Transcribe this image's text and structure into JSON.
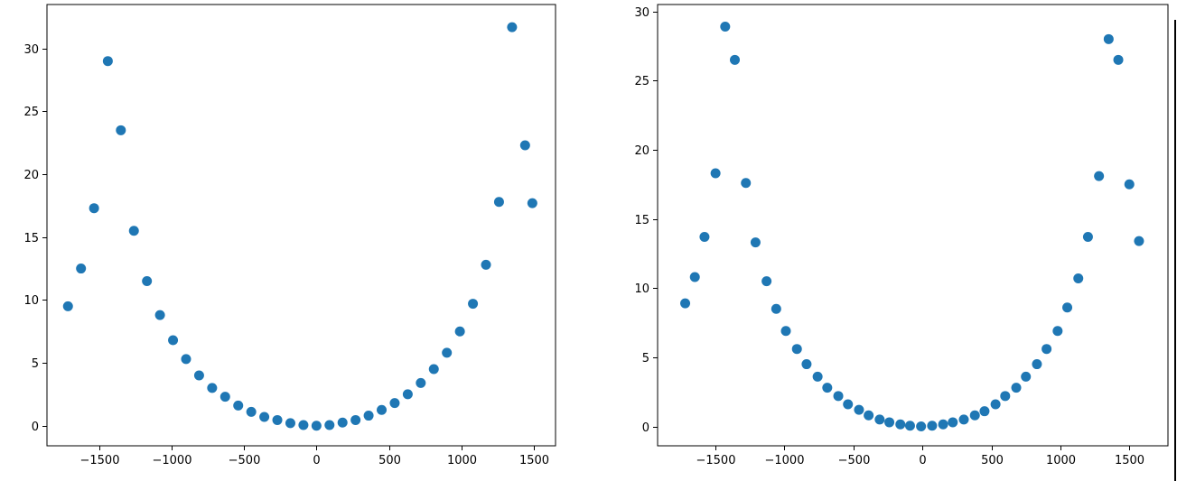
{
  "chart_data": [
    {
      "type": "scatter",
      "title": "",
      "xlabel": "",
      "ylabel": "",
      "xlim": [
        -1860,
        1650
      ],
      "ylim": [
        -1.6,
        33.5
      ],
      "xticks": [
        -1500,
        -1000,
        -500,
        0,
        500,
        1000,
        1500
      ],
      "yticks": [
        0,
        5,
        10,
        15,
        20,
        25,
        30
      ],
      "grid": false,
      "marker_color": "#1f77b4",
      "series": [
        {
          "x": [
            -1715,
            -1625,
            -1535,
            -1440,
            -1350,
            -1260,
            -1170,
            -1080,
            -990,
            -900,
            -810,
            -720,
            -630,
            -540,
            -450,
            -360,
            -270,
            -180,
            -90,
            0,
            90,
            180,
            270,
            360,
            450,
            540,
            630,
            720,
            810,
            900,
            990,
            1080,
            1170,
            1260,
            1350,
            1440,
            1490
          ],
          "y": [
            9.5,
            12.5,
            17.3,
            29.0,
            23.5,
            15.5,
            11.5,
            8.8,
            6.8,
            5.3,
            4.0,
            3.0,
            2.3,
            1.6,
            1.1,
            0.7,
            0.45,
            0.2,
            0.05,
            0.0,
            0.05,
            0.25,
            0.45,
            0.8,
            1.25,
            1.8,
            2.5,
            3.4,
            4.5,
            5.8,
            7.5,
            9.7,
            12.8,
            17.8,
            31.7,
            22.3,
            17.7
          ]
        }
      ]
    },
    {
      "type": "scatter",
      "title": "",
      "xlabel": "",
      "ylabel": "",
      "xlim": [
        -1920,
        1780
      ],
      "ylim": [
        -1.4,
        30.5
      ],
      "xticks": [
        -1500,
        -1000,
        -500,
        0,
        500,
        1000,
        1500
      ],
      "yticks": [
        0,
        5,
        10,
        15,
        20,
        25,
        30
      ],
      "grid": false,
      "marker_color": "#1f77b4",
      "series": [
        {
          "x": [
            -1720,
            -1650,
            -1580,
            -1500,
            -1430,
            -1360,
            -1280,
            -1210,
            -1130,
            -1060,
            -990,
            -910,
            -840,
            -760,
            -690,
            -610,
            -540,
            -460,
            -390,
            -310,
            -240,
            -160,
            -90,
            -10,
            70,
            150,
            220,
            300,
            380,
            450,
            530,
            600,
            680,
            750,
            830,
            900,
            980,
            1050,
            1130,
            1200,
            1280,
            1350,
            1420,
            1500,
            1570
          ],
          "y": [
            8.9,
            10.8,
            13.7,
            18.3,
            28.9,
            26.5,
            17.6,
            13.3,
            10.5,
            8.5,
            6.9,
            5.6,
            4.5,
            3.6,
            2.8,
            2.2,
            1.6,
            1.2,
            0.8,
            0.5,
            0.3,
            0.15,
            0.05,
            0.0,
            0.05,
            0.15,
            0.3,
            0.5,
            0.8,
            1.1,
            1.6,
            2.2,
            2.8,
            3.6,
            4.5,
            5.6,
            6.9,
            8.6,
            10.7,
            13.7,
            18.1,
            28.0,
            26.5,
            17.5,
            13.4
          ]
        }
      ]
    }
  ]
}
